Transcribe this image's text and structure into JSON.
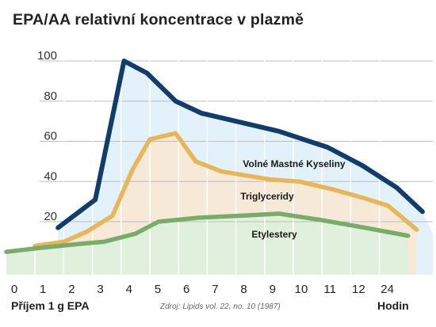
{
  "title": "EPA/AA relativní koncentrace v plazmě",
  "footer": {
    "left": "Příjem 1 g EPA",
    "source": "Zdroj: Lipids vol. 22, no. 10 (1987)",
    "right": "Hodin"
  },
  "chart_data": {
    "type": "area",
    "title": "EPA/AA relativní koncentrace v plazmě",
    "xlabel": "Hodin",
    "ylabel": "",
    "x_ticks": [
      "0",
      "1",
      "2",
      "3",
      "4",
      "5",
      "6",
      "7",
      "8",
      "9",
      "10",
      "11",
      "12",
      "24"
    ],
    "y_ticks": [
      20,
      40,
      60,
      80,
      100
    ],
    "ylim": [
      0,
      100
    ],
    "grid": true,
    "series": [
      {
        "name": "Volné Mastné Kyseliny",
        "color": "#123c69",
        "fill": "#e3f1fa",
        "points": [
          [
            1.8,
            17
          ],
          [
            3.1,
            31
          ],
          [
            4.1,
            100
          ],
          [
            4.9,
            94
          ],
          [
            5.9,
            80
          ],
          [
            6.8,
            74
          ],
          [
            9.5,
            65
          ],
          [
            11.2,
            57
          ],
          [
            12.4,
            48
          ],
          [
            13.6,
            37
          ],
          [
            14.5,
            25
          ]
        ]
      },
      {
        "name": "Triglyceridy",
        "color": "#e8b65a",
        "fill": "#f7e9d8",
        "points": [
          [
            1.0,
            8
          ],
          [
            2.0,
            10
          ],
          [
            2.8,
            15
          ],
          [
            3.7,
            23
          ],
          [
            4.4,
            46
          ],
          [
            5.0,
            61
          ],
          [
            5.9,
            64
          ],
          [
            6.6,
            50
          ],
          [
            7.5,
            45
          ],
          [
            9.2,
            41
          ],
          [
            10.2,
            40
          ],
          [
            11.4,
            36
          ],
          [
            12.4,
            32
          ],
          [
            13.3,
            28
          ],
          [
            14.3,
            16
          ]
        ]
      },
      {
        "name": "Etylestery",
        "color": "#7aab6a",
        "fill": "#e0f0dc",
        "points": [
          [
            0,
            5
          ],
          [
            1.2,
            7
          ],
          [
            2.6,
            9
          ],
          [
            3.4,
            10
          ],
          [
            4.5,
            14
          ],
          [
            5.3,
            20
          ],
          [
            6.7,
            22
          ],
          [
            8.2,
            23
          ],
          [
            9.5,
            24
          ],
          [
            10.9,
            21
          ],
          [
            12.5,
            17
          ],
          [
            14.0,
            13
          ]
        ]
      }
    ]
  }
}
